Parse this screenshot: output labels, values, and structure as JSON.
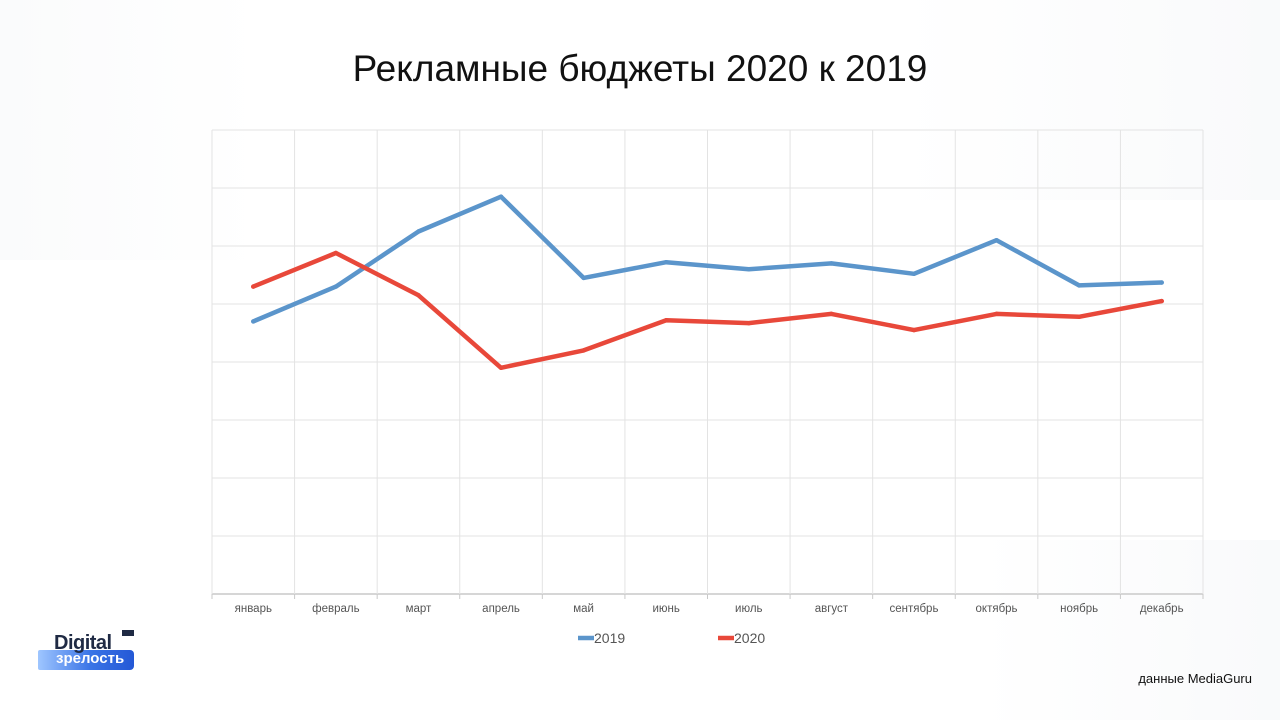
{
  "title": "Рекламные бюджеты 2020 к 2019",
  "source_note": "данные MediaGuru",
  "logo": {
    "top_text": "Digital",
    "bottom_text": "зрелость"
  },
  "chart_data": {
    "type": "line",
    "title": "Рекламные бюджеты 2020 к 2019",
    "categories": [
      "январь",
      "февраль",
      "март",
      "апрель",
      "май",
      "июнь",
      "июль",
      "август",
      "сентябрь",
      "октябрь",
      "ноябрь",
      "декабрь"
    ],
    "series": [
      {
        "name": "2019",
        "color": "#5b95cb",
        "values": [
          4.7,
          5.3,
          6.25,
          6.85,
          5.45,
          5.72,
          5.6,
          5.7,
          5.52,
          6.1,
          5.32,
          5.37
        ]
      },
      {
        "name": "2020",
        "color": "#e8483a",
        "values": [
          5.3,
          5.88,
          5.15,
          3.9,
          4.2,
          4.72,
          4.67,
          4.83,
          4.55,
          4.83,
          4.78,
          5.05
        ]
      }
    ],
    "ylim": [
      0,
      8
    ],
    "y_tick_labels_shown": false,
    "grid": true,
    "legend_position": "bottom"
  }
}
